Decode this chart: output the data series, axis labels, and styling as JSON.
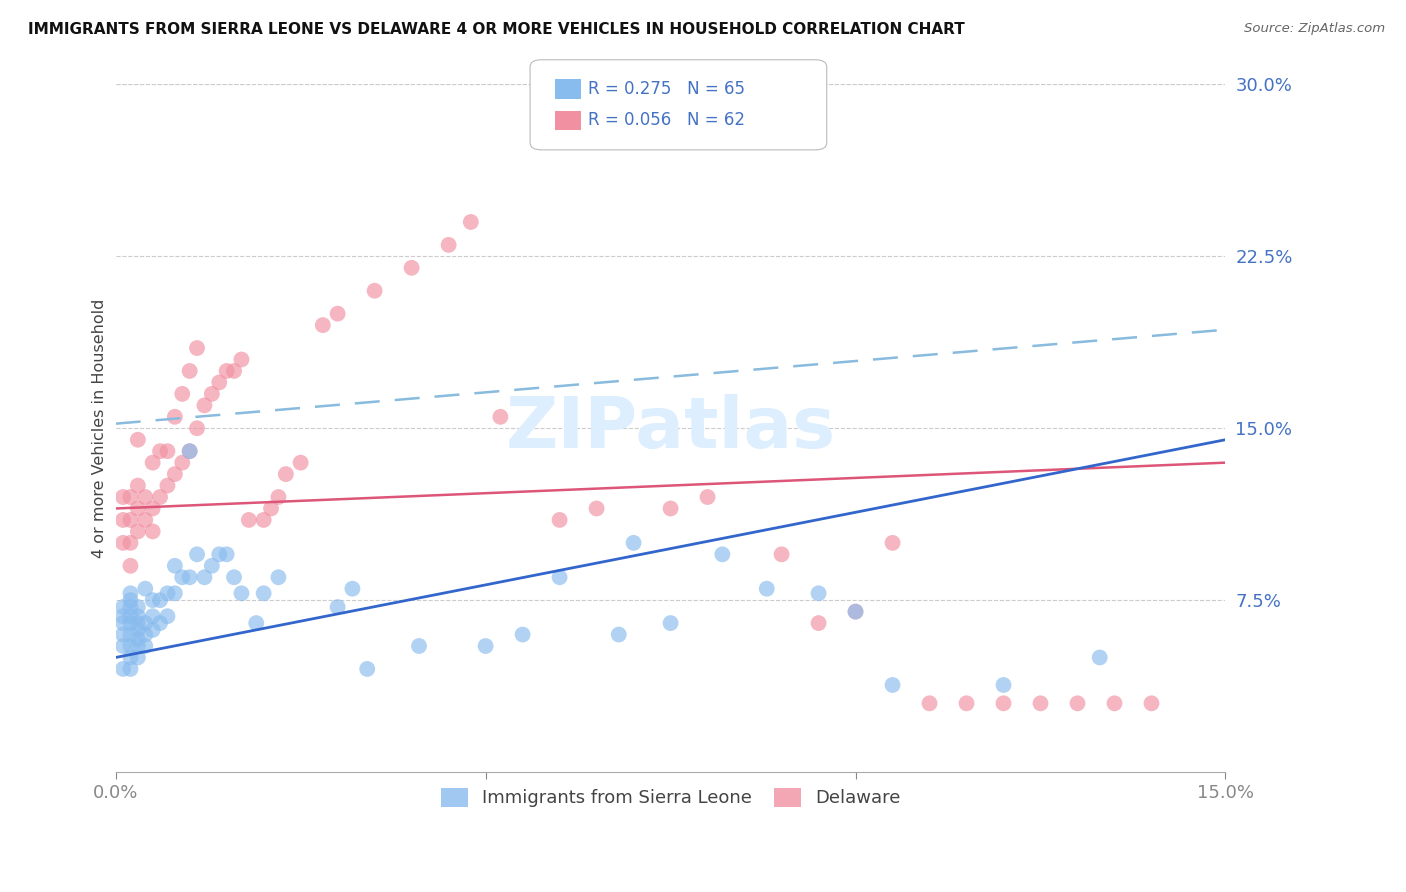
{
  "title": "IMMIGRANTS FROM SIERRA LEONE VS DELAWARE 4 OR MORE VEHICLES IN HOUSEHOLD CORRELATION CHART",
  "source": "Source: ZipAtlas.com",
  "ylabel": "4 or more Vehicles in Household",
  "ytick_labels": [
    "7.5%",
    "15.0%",
    "22.5%",
    "30.0%"
  ],
  "ytick_vals": [
    0.075,
    0.15,
    0.225,
    0.3
  ],
  "xmin": 0.0,
  "xmax": 0.15,
  "ymin": 0.0,
  "ymax": 0.3,
  "legend_r1": "R = 0.275   N = 65",
  "legend_r2": "R = 0.056   N = 62",
  "legend_label_1": "Immigrants from Sierra Leone",
  "legend_label_2": "Delaware",
  "blue_color": "#88bbee",
  "pink_color": "#f090a0",
  "regression_blue_color": "#3366cc",
  "regression_pink_color": "#dd5577",
  "dashed_line_color": "#88bbdd",
  "watermark_color": "#ddeeff",
  "blue_x": [
    0.001,
    0.001,
    0.001,
    0.001,
    0.001,
    0.001,
    0.002,
    0.002,
    0.002,
    0.002,
    0.002,
    0.002,
    0.002,
    0.002,
    0.002,
    0.003,
    0.003,
    0.003,
    0.003,
    0.003,
    0.003,
    0.003,
    0.004,
    0.004,
    0.004,
    0.004,
    0.005,
    0.005,
    0.005,
    0.006,
    0.006,
    0.007,
    0.007,
    0.008,
    0.008,
    0.009,
    0.01,
    0.01,
    0.011,
    0.012,
    0.013,
    0.014,
    0.015,
    0.016,
    0.017,
    0.019,
    0.02,
    0.022,
    0.03,
    0.032,
    0.034,
    0.041,
    0.05,
    0.055,
    0.06,
    0.068,
    0.07,
    0.075,
    0.082,
    0.088,
    0.095,
    0.1,
    0.105,
    0.12,
    0.133
  ],
  "blue_y": [
    0.045,
    0.055,
    0.06,
    0.065,
    0.068,
    0.072,
    0.045,
    0.05,
    0.055,
    0.06,
    0.065,
    0.068,
    0.072,
    0.075,
    0.078,
    0.05,
    0.055,
    0.058,
    0.062,
    0.065,
    0.068,
    0.072,
    0.055,
    0.06,
    0.065,
    0.08,
    0.062,
    0.068,
    0.075,
    0.065,
    0.075,
    0.068,
    0.078,
    0.078,
    0.09,
    0.085,
    0.085,
    0.14,
    0.095,
    0.085,
    0.09,
    0.095,
    0.095,
    0.085,
    0.078,
    0.065,
    0.078,
    0.085,
    0.072,
    0.08,
    0.045,
    0.055,
    0.055,
    0.06,
    0.085,
    0.06,
    0.1,
    0.065,
    0.095,
    0.08,
    0.078,
    0.07,
    0.038,
    0.038,
    0.05
  ],
  "pink_x": [
    0.001,
    0.001,
    0.001,
    0.002,
    0.002,
    0.002,
    0.002,
    0.003,
    0.003,
    0.003,
    0.003,
    0.004,
    0.004,
    0.005,
    0.005,
    0.005,
    0.006,
    0.006,
    0.007,
    0.007,
    0.008,
    0.008,
    0.009,
    0.009,
    0.01,
    0.01,
    0.011,
    0.011,
    0.012,
    0.013,
    0.014,
    0.015,
    0.016,
    0.017,
    0.018,
    0.02,
    0.021,
    0.022,
    0.023,
    0.025,
    0.028,
    0.03,
    0.035,
    0.04,
    0.045,
    0.048,
    0.052,
    0.06,
    0.065,
    0.075,
    0.08,
    0.09,
    0.095,
    0.1,
    0.105,
    0.11,
    0.115,
    0.12,
    0.125,
    0.13,
    0.135,
    0.14
  ],
  "pink_y": [
    0.1,
    0.11,
    0.12,
    0.09,
    0.1,
    0.11,
    0.12,
    0.105,
    0.115,
    0.125,
    0.145,
    0.11,
    0.12,
    0.105,
    0.115,
    0.135,
    0.12,
    0.14,
    0.125,
    0.14,
    0.13,
    0.155,
    0.135,
    0.165,
    0.14,
    0.175,
    0.15,
    0.185,
    0.16,
    0.165,
    0.17,
    0.175,
    0.175,
    0.18,
    0.11,
    0.11,
    0.115,
    0.12,
    0.13,
    0.135,
    0.195,
    0.2,
    0.21,
    0.22,
    0.23,
    0.24,
    0.155,
    0.11,
    0.115,
    0.115,
    0.12,
    0.095,
    0.065,
    0.07,
    0.1,
    0.03,
    0.03,
    0.03,
    0.03,
    0.03,
    0.03,
    0.03
  ]
}
